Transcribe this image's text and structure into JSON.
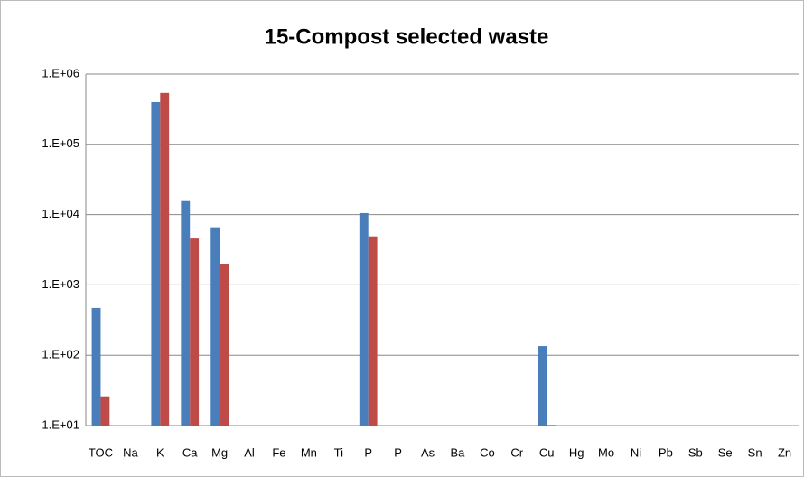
{
  "chart_data": {
    "type": "bar",
    "title": "15-Compost selected waste",
    "categories": [
      "TOC",
      "Na",
      "K",
      "Ca",
      "Mg",
      "Al",
      "Fe",
      "Mn",
      "Ti",
      "P",
      "P",
      "As",
      "Ba",
      "Co",
      "Cr",
      "Cu",
      "Hg",
      "Mo",
      "Ni",
      "Pb",
      "Sb",
      "Se",
      "Sn",
      "Zn"
    ],
    "series": [
      {
        "color": "#4a7ebb",
        "values": [
          470,
          null,
          400000,
          16000,
          6600,
          null,
          null,
          null,
          null,
          10500,
          null,
          null,
          null,
          null,
          null,
          135,
          null,
          null,
          null,
          null,
          null,
          null,
          null,
          null
        ]
      },
      {
        "color": "#be4b48",
        "values": [
          26,
          null,
          540000,
          4700,
          2000,
          null,
          null,
          null,
          null,
          4900,
          null,
          null,
          null,
          null,
          null,
          10.2,
          null,
          null,
          null,
          null,
          null,
          null,
          null,
          null
        ]
      }
    ],
    "log_scale": true,
    "ylim": [
      10,
      1000000
    ],
    "yticks": [
      {
        "value": 10,
        "label": "1.E+01"
      },
      {
        "value": 100,
        "label": "1.E+02"
      },
      {
        "value": 1000,
        "label": "1.E+03"
      },
      {
        "value": 10000,
        "label": "1.E+04"
      },
      {
        "value": 100000,
        "label": "1.E+05"
      },
      {
        "value": 1000000,
        "label": "1.E+06"
      }
    ],
    "grid": true
  }
}
